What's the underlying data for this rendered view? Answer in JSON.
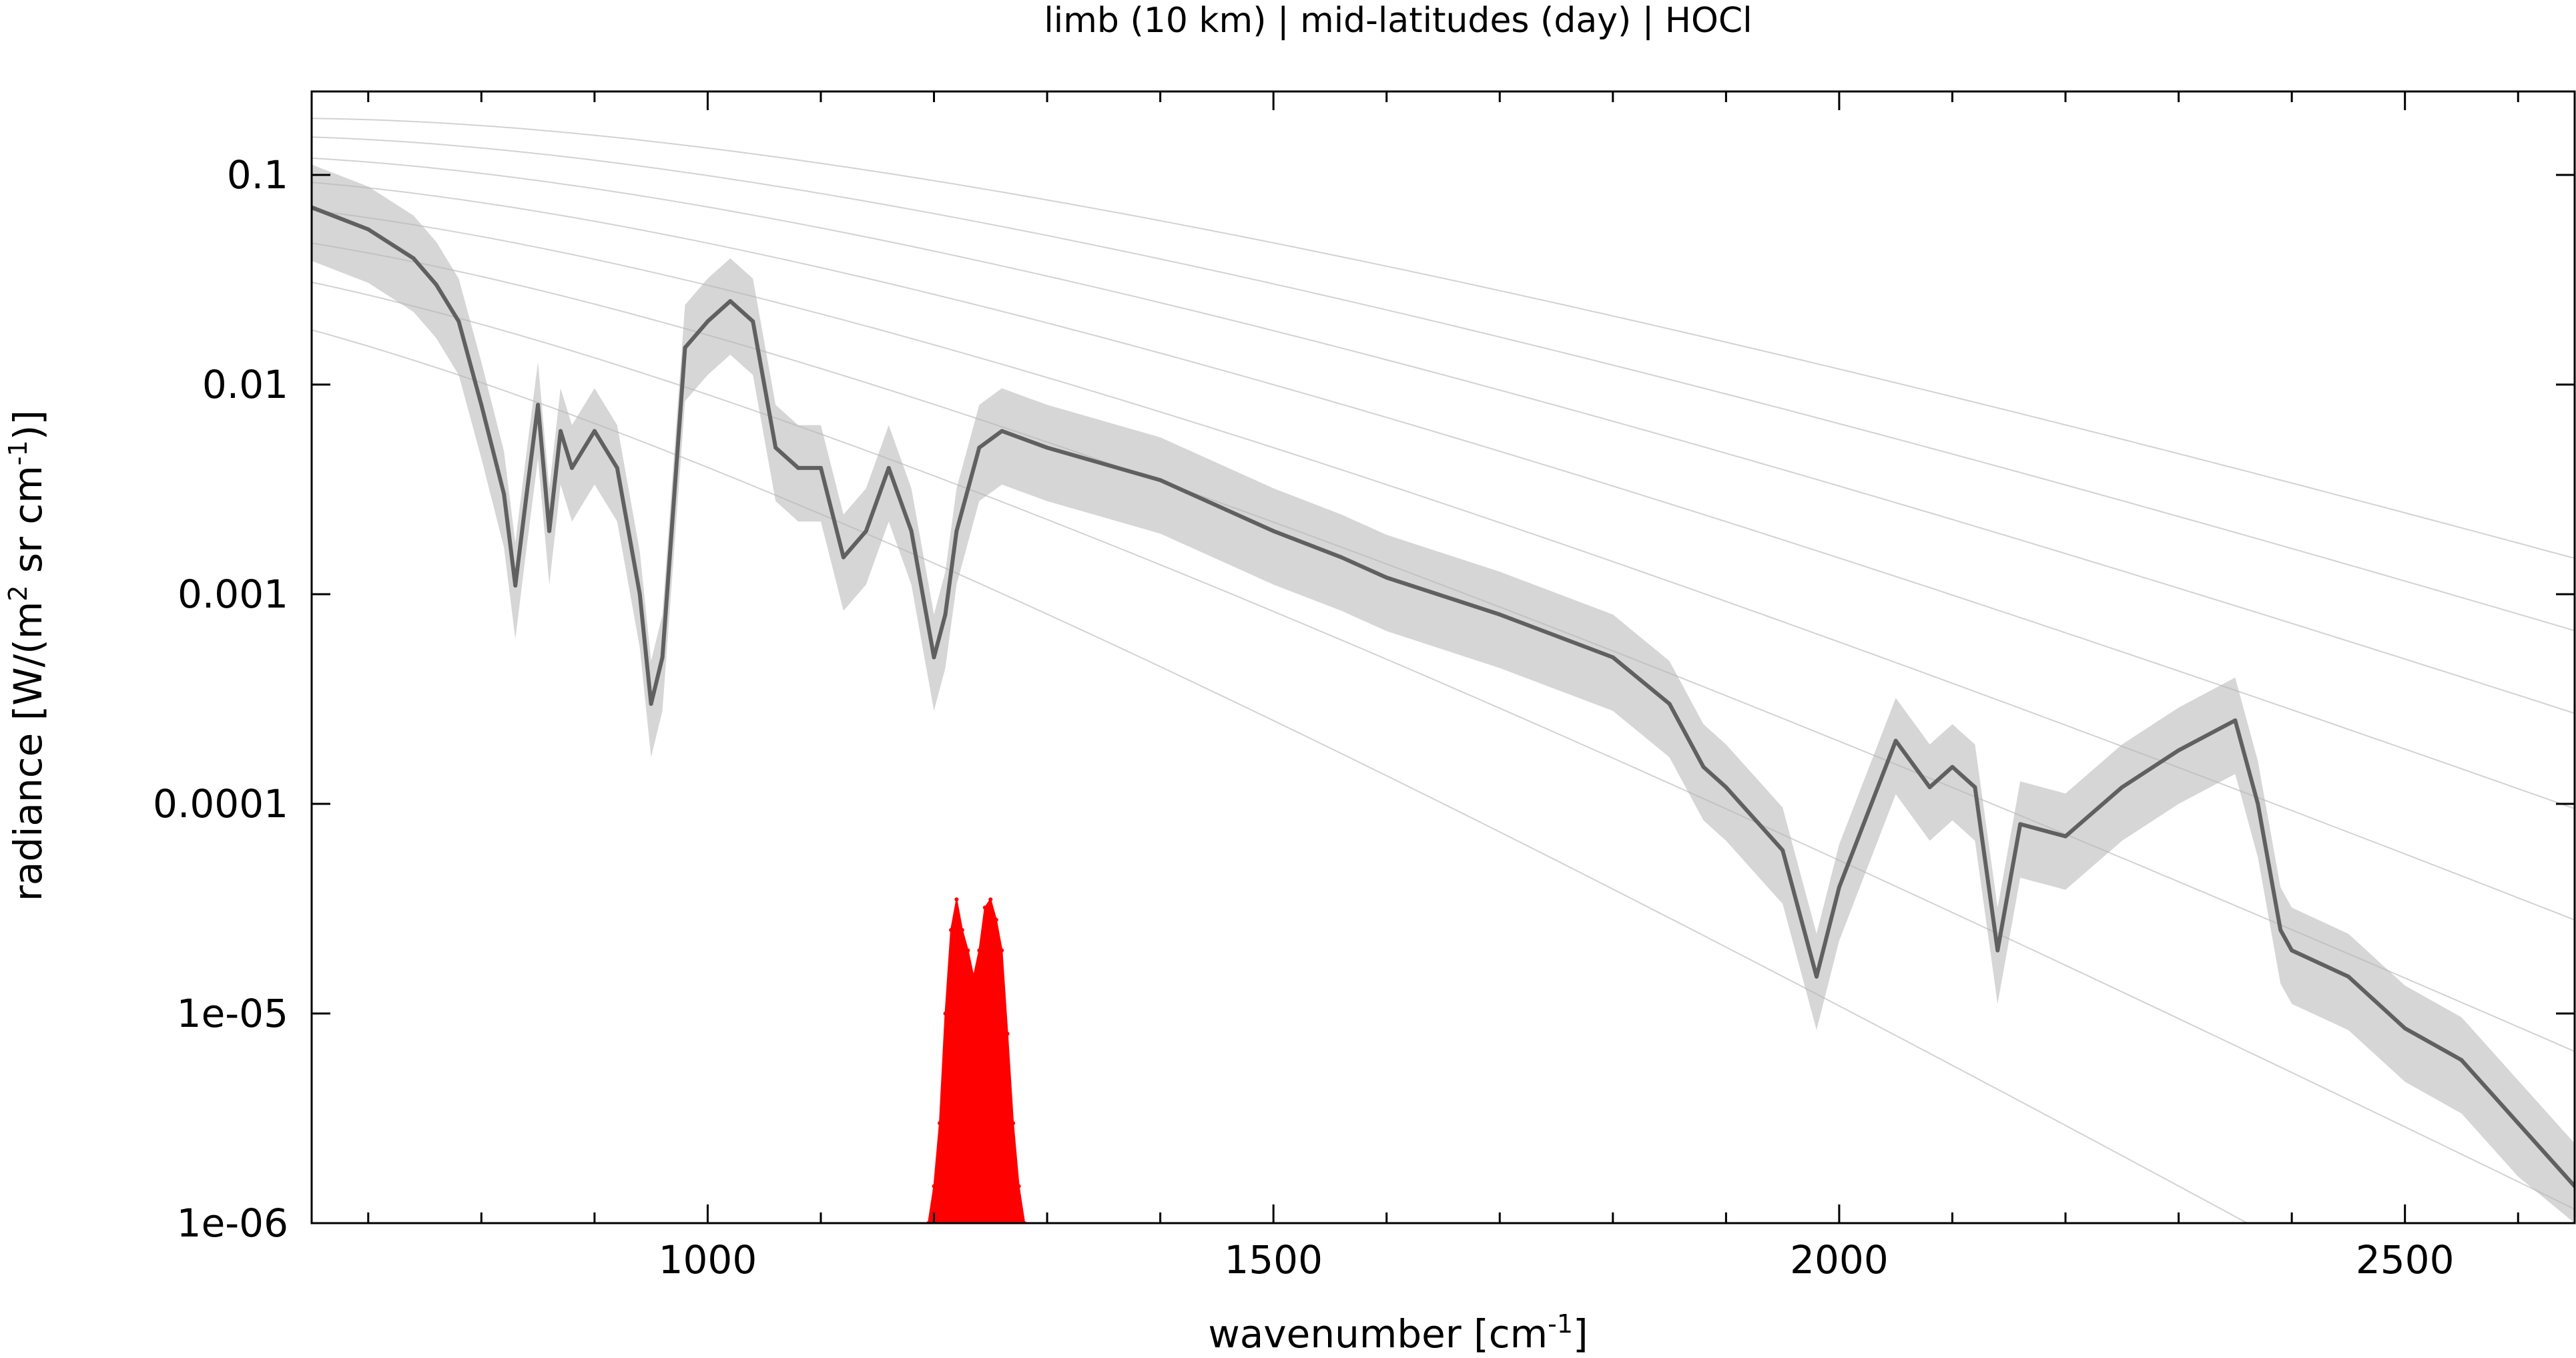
{
  "chart_data": {
    "type": "line",
    "title": "limb (10 km) | mid-latitudes (day) | HOCl",
    "xlabel": "wavenumber [cm",
    "xlabel_sup": "-1",
    "xlabel_end": "]",
    "ylabel_parts": [
      "radiance [W/(m",
      "2",
      " sr cm",
      "-1",
      ")]"
    ],
    "xlim": [
      650,
      2650
    ],
    "ylim": [
      1e-06,
      0.25
    ],
    "yscale": "log",
    "grid": false,
    "x_ticks": [
      1000,
      1500,
      2000,
      2500
    ],
    "x_tick_labels": [
      "1000",
      "1500",
      "2000",
      "2500"
    ],
    "y_ticks": [
      1e-06,
      1e-05,
      0.0001,
      0.001,
      0.01,
      0.1
    ],
    "y_tick_labels": [
      "1e-06",
      "1e-05",
      "0.0001",
      "0.001",
      "0.01",
      "0.1"
    ],
    "colors": {
      "atmosphere": "#606060",
      "atmosphere_light": "#b4b4b4",
      "target_gas": "#ff0000",
      "planck": "#d2d2d2"
    },
    "planck_temperatures_K": [
      180,
      200,
      220,
      240,
      260,
      280,
      300,
      320
    ],
    "series": [
      {
        "role": "atmosphere",
        "x": [
          650,
          700,
          740,
          760,
          780,
          800,
          820,
          830,
          840,
          850,
          860,
          870,
          880,
          900,
          920,
          940,
          950,
          960,
          980,
          1000,
          1020,
          1040,
          1060,
          1080,
          1100,
          1120,
          1140,
          1160,
          1180,
          1200,
          1210,
          1220,
          1240,
          1260,
          1300,
          1400,
          1500,
          1560,
          1600,
          1700,
          1800,
          1850,
          1880,
          1900,
          1950,
          1980,
          2000,
          2050,
          2080,
          2100,
          2120,
          2140,
          2160,
          2200,
          2250,
          2300,
          2350,
          2370,
          2390,
          2400,
          2450,
          2500,
          2550,
          2600,
          2650
        ],
        "y": [
          0.07,
          0.055,
          0.04,
          0.03,
          0.02,
          0.008,
          0.003,
          0.0011,
          0.003,
          0.008,
          0.002,
          0.006,
          0.004,
          0.006,
          0.004,
          0.001,
          0.0003,
          0.0005,
          0.015,
          0.02,
          0.025,
          0.02,
          0.005,
          0.004,
          0.004,
          0.0015,
          0.002,
          0.004,
          0.002,
          0.0005,
          0.0008,
          0.002,
          0.005,
          0.006,
          0.005,
          0.0035,
          0.002,
          0.0015,
          0.0012,
          0.0008,
          0.0005,
          0.0003,
          0.00015,
          0.00012,
          6e-05,
          1.5e-05,
          4e-05,
          0.0002,
          0.00012,
          0.00015,
          0.00012,
          2e-05,
          8e-05,
          7e-05,
          0.00012,
          0.00018,
          0.00025,
          0.0001,
          2.5e-05,
          2e-05,
          1.5e-05,
          8.5e-06,
          6e-06,
          3e-06,
          1.5e-06
        ]
      },
      {
        "role": "target_gas",
        "x": [
          1195,
          1200,
          1205,
          1210,
          1215,
          1220,
          1225,
          1230,
          1235,
          1240,
          1245,
          1250,
          1255,
          1260,
          1265,
          1270,
          1275,
          1280
        ],
        "y": [
          1e-06,
          1.5e-06,
          3e-06,
          1e-05,
          2.5e-05,
          3.5e-05,
          2.5e-05,
          2e-05,
          1.5e-05,
          2e-05,
          3.2e-05,
          3.5e-05,
          2.8e-05,
          2e-05,
          8e-06,
          3e-06,
          1.5e-06,
          1e-06
        ]
      }
    ]
  }
}
